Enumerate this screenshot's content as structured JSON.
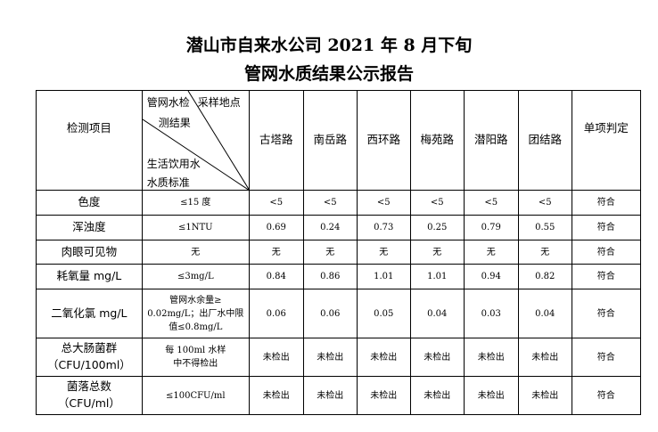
{
  "title_line1": "潜山市自来水公司 2021 年 8 月下旬",
  "title_line2": "管网水质结果公示报告",
  "header": {
    "item": "检测项目",
    "diag_top_a": "管网水检",
    "diag_top_b": "采样地点",
    "diag_mid": "测结果",
    "diag_bot_a": "生活饮用水",
    "diag_bot_b": "水质标准",
    "locations": [
      "古塔路",
      "南岳路",
      "西环路",
      "梅苑路",
      "潜阳路",
      "团结路"
    ],
    "verdict": "单项判定"
  },
  "rows": [
    {
      "item": "色度",
      "standard": "≤15 度",
      "values": [
        "<5",
        "<5",
        "<5",
        "<5",
        "<5",
        "<5"
      ],
      "verdict": "符合"
    },
    {
      "item": "浑浊度",
      "standard": "≤1NTU",
      "values": [
        "0.69",
        "0.24",
        "0.73",
        "0.25",
        "0.79",
        "0.55"
      ],
      "verdict": "符合"
    },
    {
      "item": "肉眼可见物",
      "standard": "无",
      "values": [
        "无",
        "无",
        "无",
        "无",
        "无",
        "无"
      ],
      "verdict": "符合"
    },
    {
      "item": "耗氧量 mg/L",
      "standard": "≤3mg/L",
      "values": [
        "0.84",
        "0.86",
        "1.01",
        "1.01",
        "0.94",
        "0.82"
      ],
      "verdict": "符合"
    },
    {
      "item": "二氧化氯 mg/L",
      "standard": "管网水余量≥ 0.02mg/L；出厂水中限值≤0.8mg/L",
      "values": [
        "0.06",
        "0.06",
        "0.05",
        "0.04",
        "0.03",
        "0.04"
      ],
      "verdict": "符合"
    },
    {
      "item": "总大肠菌群（CFU/100ml）",
      "standard": "每 100ml 水样中不得检出",
      "values": [
        "未检出",
        "未检出",
        "未检出",
        "未检出",
        "未检出",
        "未检出"
      ],
      "verdict": "符合"
    },
    {
      "item": "菌落总数（CFU/ml）",
      "standard": "≤100CFU/ml",
      "values": [
        "未检出",
        "未检出",
        "未检出",
        "未检出",
        "未检出",
        "未检出"
      ],
      "verdict": "符合"
    }
  ]
}
